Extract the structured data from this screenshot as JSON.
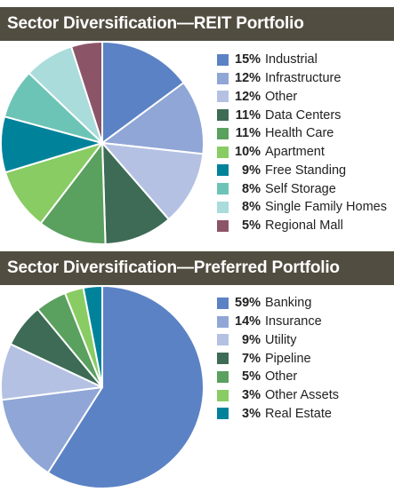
{
  "chart_data": [
    {
      "type": "pie",
      "title": "Sector Diversification—REIT Portfolio",
      "legend_position": "right",
      "slices": [
        {
          "label": "Industrial",
          "pct_label": "15%",
          "value": 15,
          "color": "#5b82c4"
        },
        {
          "label": "Infrastructure",
          "pct_label": "12%",
          "value": 12,
          "color": "#8fa6d6"
        },
        {
          "label": "Other",
          "pct_label": "12%",
          "value": 12,
          "color": "#b4c1e3"
        },
        {
          "label": "Data Centers",
          "pct_label": "11%",
          "value": 11,
          "color": "#3d6b55"
        },
        {
          "label": "Health Care",
          "pct_label": "11%",
          "value": 11,
          "color": "#5aa05e"
        },
        {
          "label": "Apartment",
          "pct_label": "10%",
          "value": 10,
          "color": "#88cc63"
        },
        {
          "label": "Free Standing",
          "pct_label": "9%",
          "value": 9,
          "color": "#00839a"
        },
        {
          "label": "Self Storage",
          "pct_label": "8%",
          "value": 8,
          "color": "#6cc4b6"
        },
        {
          "label": "Single Family Homes",
          "pct_label": "8%",
          "value": 8,
          "color": "#a9dcdb"
        },
        {
          "label": "Regional Mall",
          "pct_label": "5%",
          "value": 5,
          "color": "#8c5567"
        }
      ]
    },
    {
      "type": "pie",
      "title": "Sector Diversification—Preferred Portfolio",
      "legend_position": "right",
      "slices": [
        {
          "label": "Banking",
          "pct_label": "59%",
          "value": 59,
          "color": "#5b82c4"
        },
        {
          "label": "Insurance",
          "pct_label": "14%",
          "value": 14,
          "color": "#8fa6d6"
        },
        {
          "label": "Utility",
          "pct_label": "9%",
          "value": 9,
          "color": "#b4c1e3"
        },
        {
          "label": "Pipeline",
          "pct_label": "7%",
          "value": 7,
          "color": "#3d6b55"
        },
        {
          "label": "Other",
          "pct_label": "5%",
          "value": 5,
          "color": "#5aa05e"
        },
        {
          "label": "Other Assets",
          "pct_label": "3%",
          "value": 3,
          "color": "#88cc63"
        },
        {
          "label": "Real Estate",
          "pct_label": "3%",
          "value": 3,
          "color": "#00839a"
        }
      ]
    }
  ]
}
